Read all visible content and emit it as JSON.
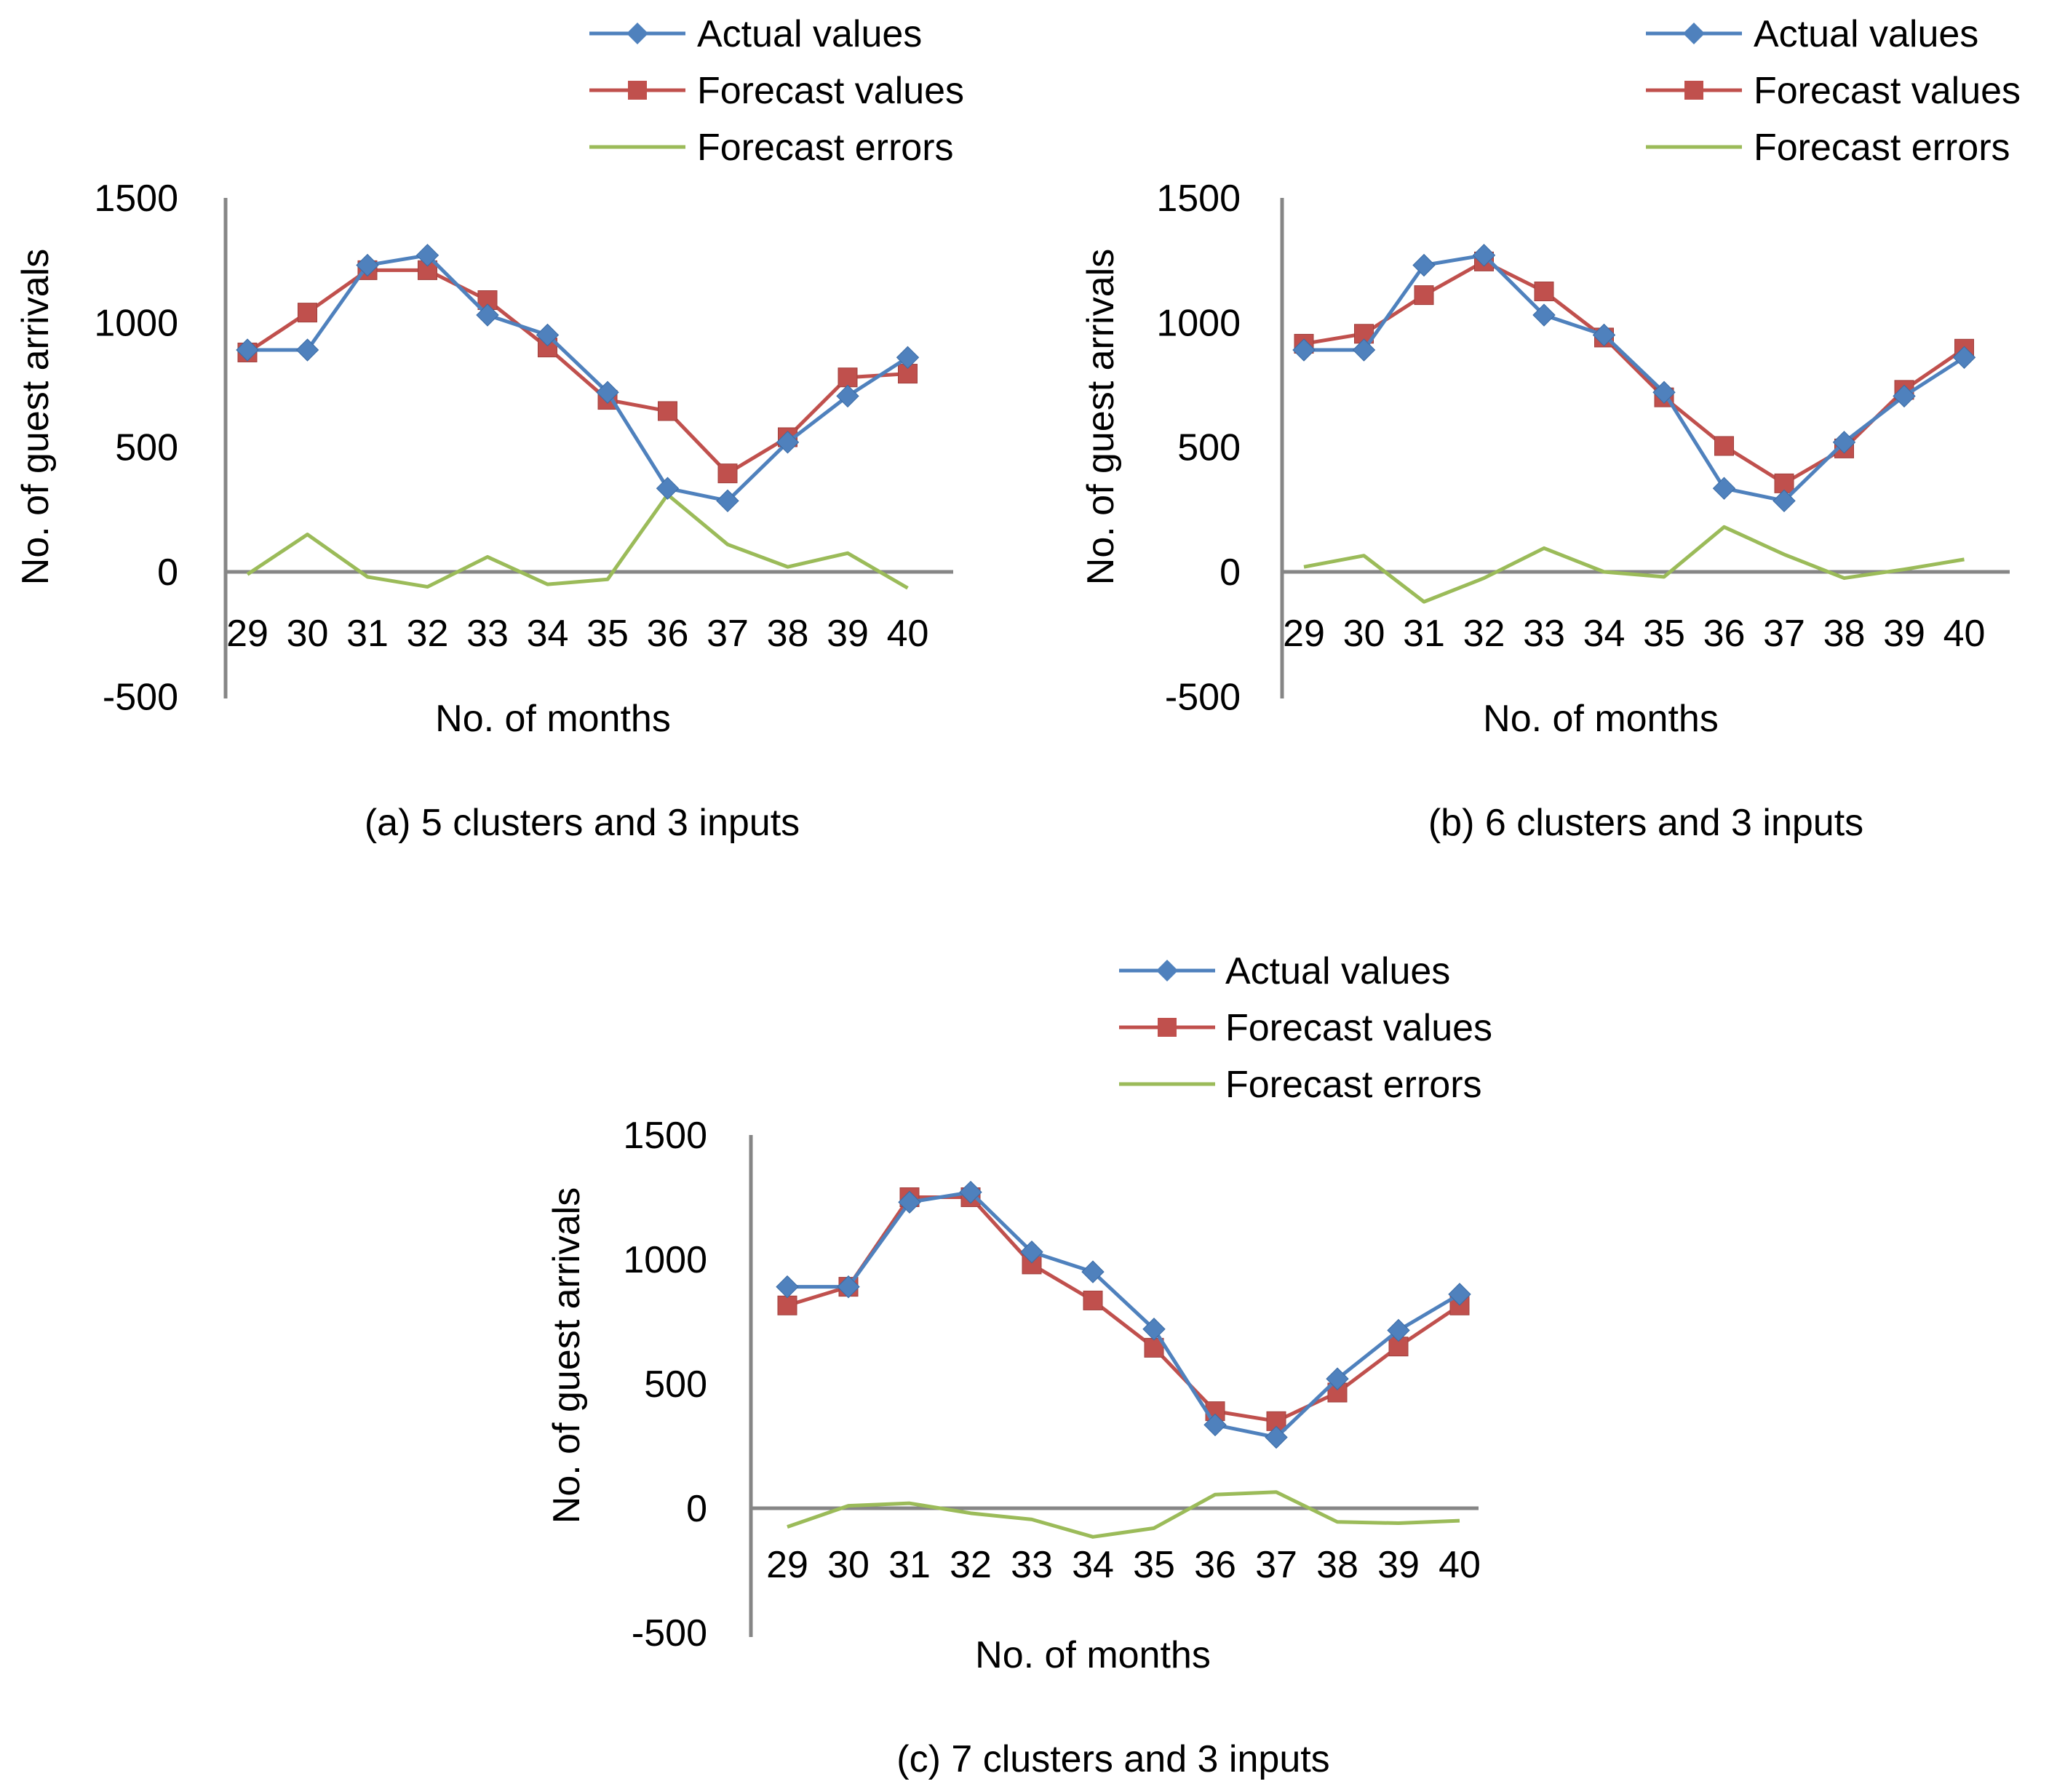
{
  "chart_data": [
    {
      "type": "line",
      "title": "",
      "caption": "(a) 5 clusters and 3 inputs",
      "xlabel": "No. of months",
      "ylabel": "No. of guest arrivals",
      "categories": [
        "29",
        "30",
        "31",
        "32",
        "33",
        "34",
        "35",
        "36",
        "37",
        "38",
        "39",
        "40"
      ],
      "ylim": [
        -500,
        1500
      ],
      "yticks": [
        "1500",
        "1000",
        "500",
        "0",
        "-500"
      ],
      "grid": false,
      "legend_position": "top-right",
      "series": [
        {
          "name": "Actual values",
          "marker": "diamond",
          "color": "#4F81BD",
          "values": [
            890,
            890,
            1230,
            1270,
            1030,
            950,
            720,
            335,
            285,
            520,
            705,
            860
          ]
        },
        {
          "name": "Forecast values",
          "marker": "square",
          "color": "#C0504D",
          "values": [
            880,
            1040,
            1210,
            1210,
            1090,
            900,
            690,
            645,
            395,
            540,
            780,
            795
          ]
        },
        {
          "name": "Forecast errors",
          "marker": "none",
          "color": "#9BBB59",
          "values": [
            -10,
            150,
            -20,
            -60,
            60,
            -50,
            -30,
            310,
            110,
            20,
            75,
            -65
          ]
        }
      ]
    },
    {
      "type": "line",
      "title": "",
      "caption": "(b) 6 clusters and 3 inputs",
      "xlabel": "No. of months",
      "ylabel": "No. of guest arrivals",
      "categories": [
        "29",
        "30",
        "31",
        "32",
        "33",
        "34",
        "35",
        "36",
        "37",
        "38",
        "39",
        "40"
      ],
      "ylim": [
        -500,
        1500
      ],
      "yticks": [
        "1500",
        "1000",
        "500",
        "0",
        "-500"
      ],
      "grid": false,
      "legend_position": "top-right",
      "series": [
        {
          "name": "Actual values",
          "marker": "diamond",
          "color": "#4F81BD",
          "values": [
            890,
            890,
            1230,
            1270,
            1030,
            950,
            720,
            335,
            285,
            520,
            705,
            860
          ]
        },
        {
          "name": "Forecast values",
          "marker": "square",
          "color": "#C0504D",
          "values": [
            915,
            955,
            1110,
            1245,
            1125,
            940,
            700,
            505,
            355,
            495,
            730,
            895
          ]
        },
        {
          "name": "Forecast errors",
          "marker": "none",
          "color": "#9BBB59",
          "values": [
            20,
            65,
            -120,
            -25,
            95,
            0,
            -20,
            180,
            70,
            -25,
            10,
            50
          ]
        }
      ]
    },
    {
      "type": "line",
      "title": "",
      "caption": "(c) 7 clusters and 3 inputs",
      "xlabel": "No. of months",
      "ylabel": "No. of guest arrivals",
      "categories": [
        "29",
        "30",
        "31",
        "32",
        "33",
        "34",
        "35",
        "36",
        "37",
        "38",
        "39",
        "40"
      ],
      "ylim": [
        -500,
        1500
      ],
      "yticks": [
        "1500",
        "1000",
        "500",
        "0",
        "-500"
      ],
      "grid": false,
      "legend_position": "top-right",
      "series": [
        {
          "name": "Actual values",
          "marker": "diamond",
          "color": "#4F81BD",
          "values": [
            890,
            890,
            1230,
            1270,
            1030,
            950,
            720,
            335,
            285,
            520,
            715,
            860
          ]
        },
        {
          "name": "Forecast values",
          "marker": "square",
          "color": "#C0504D",
          "values": [
            815,
            890,
            1250,
            1250,
            980,
            835,
            645,
            390,
            350,
            465,
            650,
            815
          ]
        },
        {
          "name": "Forecast errors",
          "marker": "none",
          "color": "#9BBB59",
          "values": [
            -75,
            10,
            20,
            -20,
            -45,
            -115,
            -80,
            55,
            65,
            -55,
            -60,
            -50
          ]
        }
      ]
    }
  ]
}
